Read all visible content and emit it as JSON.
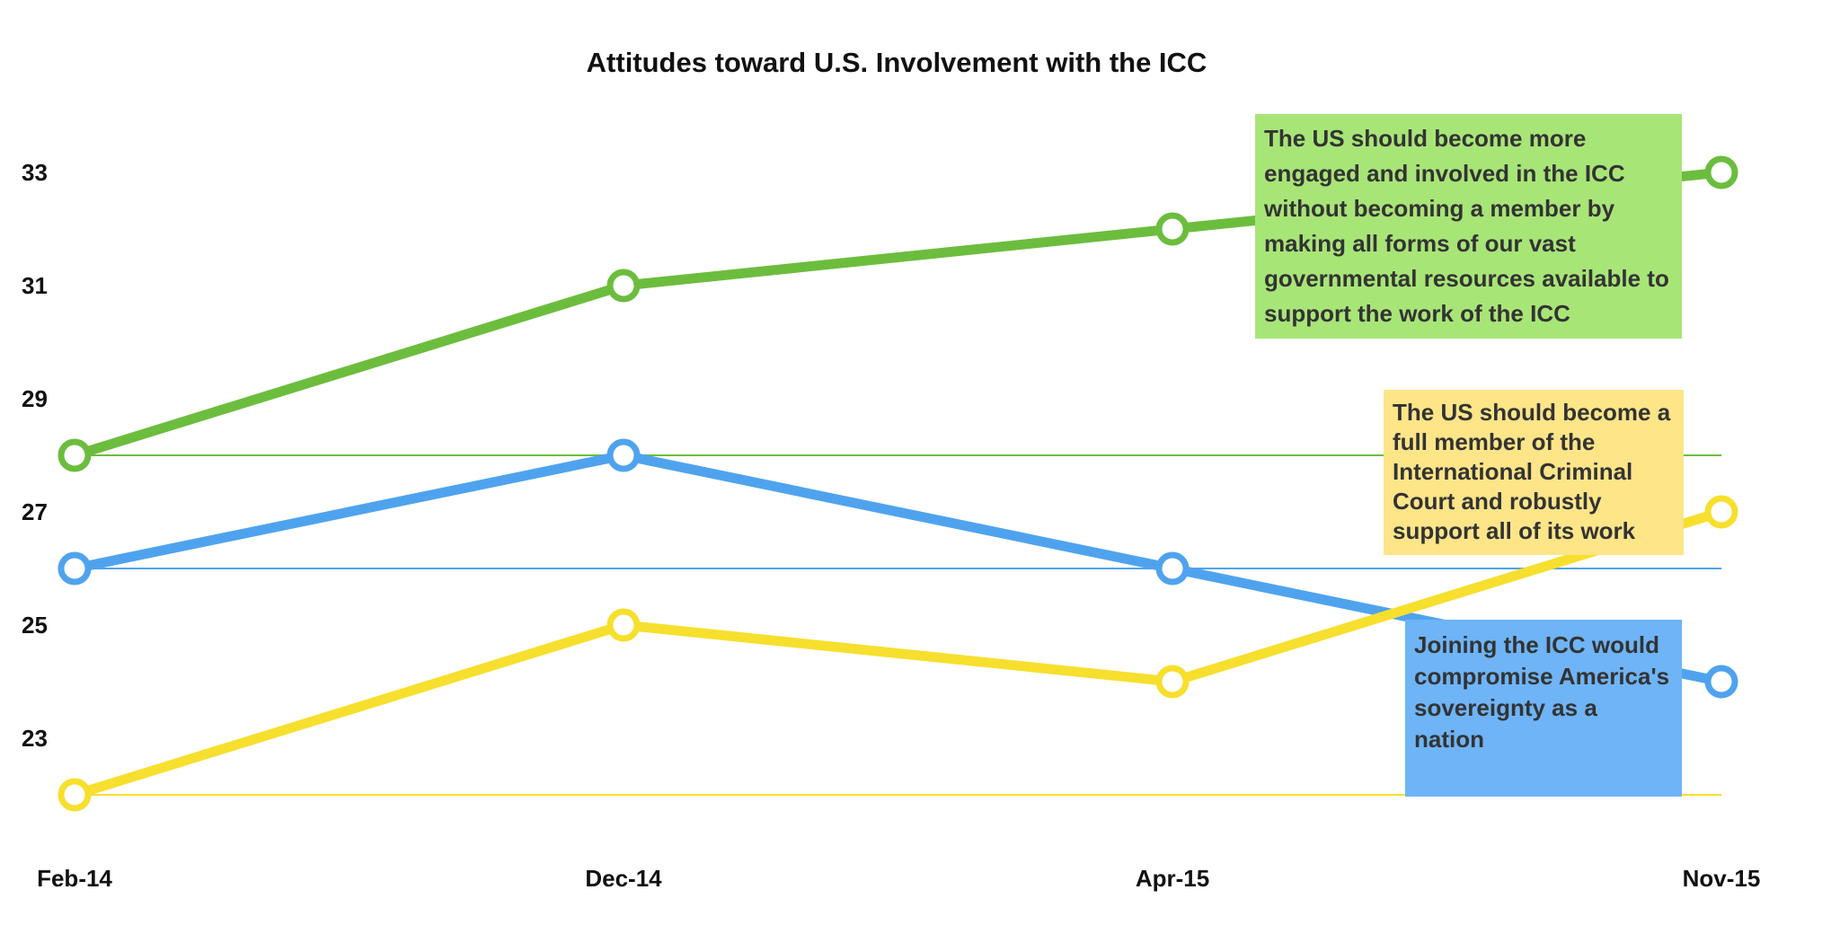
{
  "colors": {
    "green": "#6cbd3e",
    "blue": "#4fa3ee",
    "yellow": "#f7df2e",
    "green_box": "#a8e577",
    "blue_box": "#6eb4f7",
    "yellow_box": "#fde588"
  },
  "chart_data": {
    "type": "line",
    "title": "Attitudes toward U.S. Involvement with the ICC",
    "xlabel": "",
    "ylabel": "",
    "categories": [
      "Feb-14",
      "Dec-14",
      "Apr-15",
      "Nov-15"
    ],
    "ylim": [
      21,
      34
    ],
    "yticks": [
      23,
      25,
      27,
      29,
      31,
      33
    ],
    "grid": false,
    "series": [
      {
        "color": "#6cbd3e",
        "values": [
          28,
          31,
          32,
          33
        ],
        "reference_line": 28
      },
      {
        "color": "#4fa3ee",
        "values": [
          26,
          28,
          26,
          24
        ],
        "reference_line": 26
      },
      {
        "color": "#f7df2e",
        "values": [
          22,
          25,
          24,
          27
        ],
        "reference_line": 22
      }
    ],
    "annotations": [
      {
        "color": "green",
        "text": "The US should become more engaged and involved in the ICC without becoming a member by making all forms of our vast governmental resources available to support the work of the ICC"
      },
      {
        "color": "yellow",
        "text": "The US should become a full member of the International Criminal Court and robustly support all of its work"
      },
      {
        "color": "blue",
        "text": "Joining the ICC would compromise America's sovereignty as a nation"
      }
    ]
  }
}
